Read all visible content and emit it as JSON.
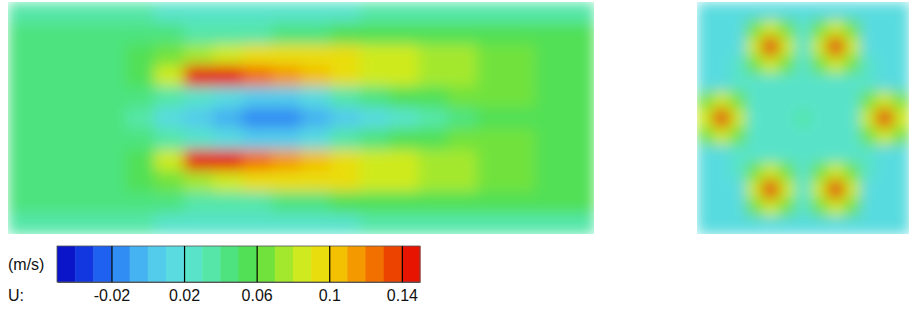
{
  "chart_data": [
    {
      "type": "heatmap",
      "tick_labels": false,
      "cells": [
        [
          0.03,
          0.03,
          0.03,
          0.03,
          0.03,
          0.02,
          0.02,
          0.02,
          0.02,
          0.02,
          0.02,
          0.02,
          0.03,
          0.03,
          0.03,
          0.03,
          0.03,
          0.03,
          0.03,
          0.03
        ],
        [
          0.04,
          0.04,
          0.04,
          0.04,
          0.04,
          0.04,
          0.03,
          0.03,
          0.03,
          0.04,
          0.04,
          0.05,
          0.05,
          0.05,
          0.05,
          0.05,
          0.05,
          0.05,
          0.05,
          0.05
        ],
        [
          0.04,
          0.04,
          0.04,
          0.04,
          0.05,
          0.06,
          0.07,
          0.08,
          0.09,
          0.09,
          0.09,
          0.09,
          0.08,
          0.08,
          0.07,
          0.07,
          0.06,
          0.06,
          0.05,
          0.05
        ],
        [
          0.04,
          0.04,
          0.04,
          0.04,
          0.05,
          0.08,
          0.15,
          0.14,
          0.12,
          0.11,
          0.1,
          0.09,
          0.08,
          0.08,
          0.07,
          0.07,
          0.06,
          0.06,
          0.05,
          0.05
        ],
        [
          0.04,
          0.04,
          0.04,
          0.04,
          0.04,
          0.03,
          0.02,
          0.01,
          0.0,
          0.0,
          0.01,
          0.03,
          0.04,
          0.05,
          0.05,
          0.06,
          0.06,
          0.06,
          0.05,
          0.05
        ],
        [
          0.04,
          0.04,
          0.04,
          0.04,
          0.03,
          0.01,
          0.0,
          -0.01,
          -0.02,
          -0.02,
          -0.01,
          0.0,
          0.01,
          0.02,
          0.03,
          0.04,
          0.05,
          0.05,
          0.05,
          0.05
        ],
        [
          0.04,
          0.04,
          0.04,
          0.04,
          0.04,
          0.03,
          0.02,
          0.01,
          0.0,
          0.0,
          0.01,
          0.03,
          0.04,
          0.05,
          0.05,
          0.06,
          0.06,
          0.06,
          0.05,
          0.05
        ],
        [
          0.04,
          0.04,
          0.04,
          0.04,
          0.05,
          0.08,
          0.15,
          0.14,
          0.12,
          0.11,
          0.1,
          0.09,
          0.08,
          0.08,
          0.07,
          0.07,
          0.06,
          0.06,
          0.05,
          0.05
        ],
        [
          0.04,
          0.04,
          0.04,
          0.04,
          0.05,
          0.06,
          0.07,
          0.08,
          0.09,
          0.09,
          0.09,
          0.09,
          0.08,
          0.08,
          0.07,
          0.07,
          0.06,
          0.06,
          0.05,
          0.05
        ],
        [
          0.04,
          0.04,
          0.04,
          0.04,
          0.04,
          0.04,
          0.03,
          0.03,
          0.03,
          0.04,
          0.04,
          0.05,
          0.05,
          0.05,
          0.05,
          0.05,
          0.05,
          0.05,
          0.05,
          0.05
        ],
        [
          0.03,
          0.03,
          0.03,
          0.03,
          0.03,
          0.02,
          0.02,
          0.02,
          0.02,
          0.02,
          0.02,
          0.02,
          0.03,
          0.03,
          0.03,
          0.03,
          0.03,
          0.03,
          0.03,
          0.03
        ]
      ],
      "colorbar": {
        "unit": "(m/s)",
        "label": "U:",
        "range": [
          -0.05,
          0.15
        ],
        "ticks": [
          -0.02,
          0.02,
          0.06,
          0.1,
          0.14
        ]
      }
    },
    {
      "type": "heatmap",
      "tick_labels": false,
      "cells": [
        [
          0.01,
          0.01,
          0.01,
          0.01,
          0.01,
          0.01,
          0.01,
          0.01,
          0.01,
          0.01,
          0.01,
          0.01,
          0.01
        ],
        [
          0.01,
          0.01,
          0.01,
          0.06,
          0.08,
          0.06,
          0.02,
          0.06,
          0.08,
          0.06,
          0.01,
          0.01,
          0.01
        ],
        [
          0.01,
          0.01,
          0.01,
          0.08,
          0.15,
          0.08,
          0.02,
          0.08,
          0.15,
          0.08,
          0.01,
          0.01,
          0.01
        ],
        [
          0.01,
          0.01,
          0.02,
          0.06,
          0.08,
          0.06,
          0.02,
          0.06,
          0.08,
          0.06,
          0.02,
          0.01,
          0.01
        ],
        [
          0.01,
          0.01,
          0.02,
          0.02,
          0.02,
          0.02,
          0.02,
          0.02,
          0.02,
          0.02,
          0.02,
          0.01,
          0.01
        ],
        [
          0.06,
          0.08,
          0.06,
          0.02,
          0.02,
          0.02,
          0.02,
          0.02,
          0.02,
          0.02,
          0.06,
          0.08,
          0.06
        ],
        [
          0.08,
          0.15,
          0.08,
          0.02,
          0.02,
          0.02,
          0.03,
          0.02,
          0.02,
          0.02,
          0.08,
          0.15,
          0.08
        ],
        [
          0.06,
          0.08,
          0.06,
          0.02,
          0.02,
          0.02,
          0.02,
          0.02,
          0.02,
          0.02,
          0.06,
          0.08,
          0.06
        ],
        [
          0.01,
          0.01,
          0.02,
          0.02,
          0.02,
          0.02,
          0.02,
          0.02,
          0.02,
          0.02,
          0.02,
          0.01,
          0.01
        ],
        [
          0.01,
          0.01,
          0.02,
          0.06,
          0.08,
          0.06,
          0.02,
          0.06,
          0.08,
          0.06,
          0.02,
          0.01,
          0.01
        ],
        [
          0.01,
          0.01,
          0.01,
          0.08,
          0.15,
          0.08,
          0.02,
          0.08,
          0.15,
          0.08,
          0.01,
          0.01,
          0.01
        ],
        [
          0.01,
          0.01,
          0.01,
          0.06,
          0.08,
          0.06,
          0.02,
          0.06,
          0.08,
          0.06,
          0.01,
          0.01,
          0.01
        ],
        [
          0.01,
          0.01,
          0.01,
          0.01,
          0.01,
          0.01,
          0.01,
          0.01,
          0.01,
          0.01,
          0.01,
          0.01,
          0.01
        ]
      ]
    }
  ]
}
